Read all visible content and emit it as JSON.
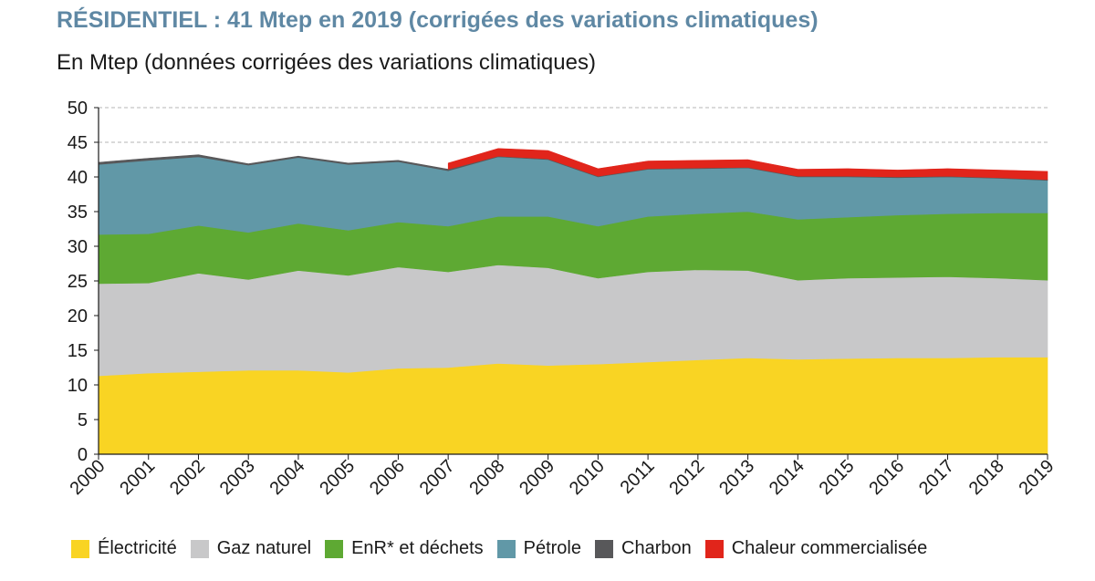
{
  "title": "RÉSIDENTIEL : 41 Mtep en 2019 (corrigées des variations climatiques)",
  "subtitle": "En Mtep (données corrigées des variations climatiques)",
  "chart_data": {
    "type": "area",
    "stacked": true,
    "categories": [
      "2000",
      "2001",
      "2002",
      "2003",
      "2004",
      "2005",
      "2006",
      "2007",
      "2008",
      "2009",
      "2010",
      "2011",
      "2012",
      "2013",
      "2014",
      "2015",
      "2016",
      "2017",
      "2018",
      "2019"
    ],
    "ylim": [
      0,
      50
    ],
    "yticks": [
      0,
      5,
      10,
      15,
      20,
      25,
      30,
      35,
      40,
      45,
      50
    ],
    "grid": "horizontal dashed",
    "legend_position": "bottom",
    "series": [
      {
        "name": "Électricité",
        "color": "#f9d423",
        "values": [
          11.3,
          11.7,
          11.9,
          12.1,
          12.1,
          11.8,
          12.4,
          12.5,
          13.1,
          12.8,
          13.0,
          13.3,
          13.6,
          13.9,
          13.7,
          13.8,
          13.9,
          13.9,
          14.0,
          14.0
        ]
      },
      {
        "name": "Gaz naturel",
        "color": "#c8c8c9",
        "values": [
          13.3,
          13.0,
          14.2,
          13.1,
          14.4,
          14.0,
          14.6,
          13.8,
          14.2,
          14.1,
          12.4,
          13.0,
          13.0,
          12.6,
          11.4,
          11.6,
          11.6,
          11.7,
          11.4,
          11.1
        ]
      },
      {
        "name": "EnR* et déchets",
        "color": "#5ea933",
        "values": [
          7.1,
          7.1,
          6.9,
          6.8,
          6.8,
          6.5,
          6.5,
          6.6,
          7.0,
          7.4,
          7.5,
          8.0,
          8.1,
          8.5,
          8.8,
          8.8,
          9.0,
          9.1,
          9.4,
          9.7
        ]
      },
      {
        "name": "Pétrole",
        "color": "#6198a7",
        "values": [
          10.1,
          10.6,
          9.9,
          9.7,
          9.5,
          9.5,
          8.7,
          8.0,
          8.6,
          8.2,
          7.1,
          6.8,
          6.5,
          6.3,
          6.1,
          5.8,
          5.4,
          5.3,
          5.0,
          4.7
        ]
      },
      {
        "name": "Charbon",
        "color": "#58585a",
        "values": [
          0.3,
          0.3,
          0.3,
          0.2,
          0.2,
          0.2,
          0.2,
          0.2,
          0.1,
          0.1,
          0.1,
          0.1,
          0.1,
          0.1,
          0.1,
          0.1,
          0.1,
          0.1,
          0.1,
          0.1
        ]
      },
      {
        "name": "Chaleur commercialisée",
        "color": "#e1251b",
        "values": [
          0,
          0,
          0,
          0,
          0,
          0,
          0,
          0.9,
          1.1,
          1.2,
          1.1,
          1.1,
          1.1,
          1.1,
          1.0,
          1.1,
          1.0,
          1.1,
          1.1,
          1.2
        ]
      }
    ]
  }
}
